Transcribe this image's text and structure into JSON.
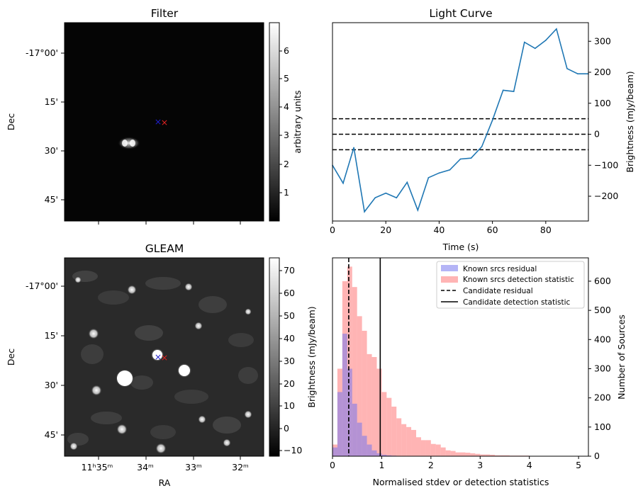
{
  "panels": {
    "filter": {
      "title": "Filter",
      "dec_ticks": [
        "-17°00'",
        "15'",
        "30'",
        "45'"
      ],
      "ylabel": "Dec",
      "colorbar_label": "arbitrary units",
      "colorbar_ticks": [
        "6",
        "5",
        "4",
        "3",
        "2",
        "1"
      ],
      "colorbar_range": [
        0.1,
        6.9
      ]
    },
    "gleam": {
      "title": "GLEAM",
      "dec_ticks": [
        "-17°00'",
        "15'",
        "30'",
        "45'"
      ],
      "ra_ticks": [
        "11ʰ35ᵐ",
        "34ᵐ",
        "33ᵐ",
        "32ᵐ"
      ],
      "ylabel": "Dec",
      "xlabel": "RA",
      "colorbar_label": "Brightness (mJy/beam)",
      "colorbar_ticks": [
        "70",
        "60",
        "50",
        "40",
        "30",
        "20",
        "10",
        "0",
        "−10"
      ],
      "colorbar_range": [
        -13,
        75
      ]
    },
    "markers": {
      "candidate": "×",
      "colors": {
        "blue": "#1f1fcc",
        "red": "#dd2222"
      }
    }
  },
  "chart_data": [
    {
      "type": "line",
      "title": "Light Curve",
      "xlabel": "Time (s)",
      "ylabel": "Brightness (mJy/beam)",
      "xlim": [
        0,
        96
      ],
      "ylim": [
        -280,
        360
      ],
      "x_ticks": [
        "0",
        "20",
        "40",
        "60",
        "80"
      ],
      "y_ticks": [
        "300",
        "200",
        "100",
        "0",
        "−100",
        "−200"
      ],
      "series": [
        {
          "color": "#1f77b4",
          "x": [
            0,
            4,
            8,
            12,
            16,
            20,
            24,
            28,
            32,
            36,
            40,
            44,
            48,
            52,
            56,
            60,
            64,
            68,
            72,
            76,
            80,
            84,
            88,
            92,
            96
          ],
          "y": [
            -100,
            -158,
            -43,
            -250,
            -205,
            -190,
            -205,
            -155,
            -245,
            -140,
            -125,
            -115,
            -80,
            -77,
            -40,
            45,
            142,
            138,
            297,
            277,
            303,
            340,
            212,
            195,
            195
          ]
        }
      ],
      "hlines": [
        {
          "y": 50,
          "style": "dashed"
        },
        {
          "y": 0,
          "style": "dashed"
        },
        {
          "y": -50,
          "style": "dashed"
        }
      ]
    },
    {
      "type": "histogram",
      "xlabel": "Normalised stdev or detection statistics",
      "ylabel_left": "Brightness (mJy/beam)",
      "ylabel_right": "Number of Sources",
      "xlim": [
        0,
        5.2
      ],
      "ylim": [
        0,
        680
      ],
      "x_ticks": [
        "0",
        "1",
        "2",
        "3",
        "4",
        "5"
      ],
      "y_ticks": [
        "600",
        "500",
        "400",
        "300",
        "200",
        "100",
        "0"
      ],
      "bin_width": 0.1,
      "series": [
        {
          "name": "Known srcs residual",
          "color": "#7777ee",
          "bin_start": 0.0,
          "counts": [
            30,
            220,
            420,
            300,
            180,
            115,
            70,
            40,
            20,
            10,
            5,
            3,
            2
          ]
        },
        {
          "name": "Known srcs detection statistic",
          "color": "#ff7777",
          "bin_start": 0.0,
          "counts": [
            40,
            300,
            600,
            650,
            580,
            480,
            430,
            350,
            340,
            300,
            220,
            200,
            170,
            130,
            110,
            100,
            90,
            65,
            55,
            55,
            42,
            40,
            30,
            20,
            18,
            13,
            13,
            12,
            10,
            8,
            6,
            6,
            5,
            3,
            3,
            3,
            2,
            2,
            2,
            2,
            1,
            1,
            1,
            0,
            0,
            0,
            0,
            1,
            0,
            1
          ]
        }
      ],
      "vlines": [
        {
          "name": "Candidate residual",
          "x": 0.33,
          "style": "dashed"
        },
        {
          "name": "Candidate detection statistic",
          "x": 0.97,
          "style": "solid"
        }
      ],
      "legend": "top-right"
    }
  ]
}
